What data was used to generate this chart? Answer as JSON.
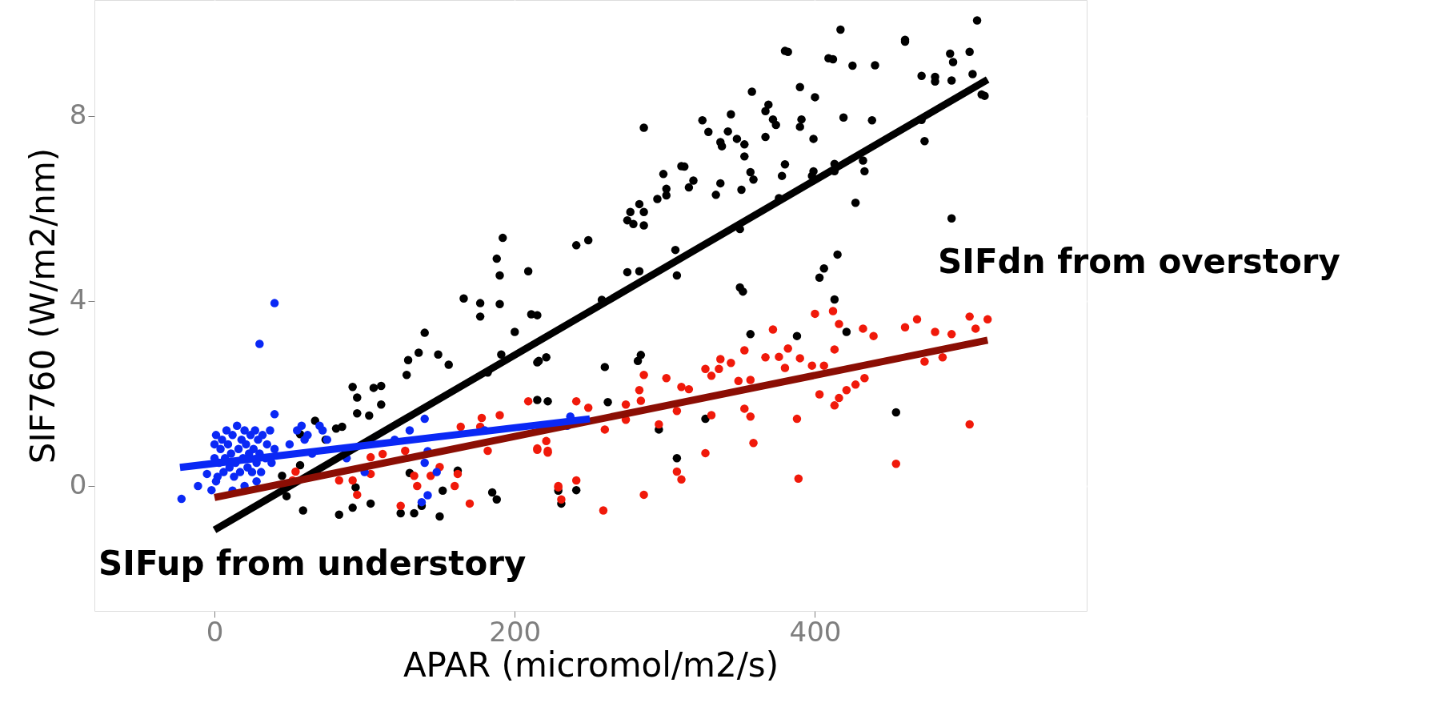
{
  "chart_data": {
    "type": "scatter",
    "xlabel": "APAR (micromol/m2/s)",
    "ylabel": "SIF760 (W/m2/nm)",
    "xlim": [
      -80,
      581
    ],
    "ylim": [
      -2.7,
      10.5
    ],
    "xticks": [
      0,
      200,
      400
    ],
    "yticks": [
      0,
      4,
      8
    ],
    "grid": true,
    "legend": false,
    "series": [
      {
        "marker": "circle",
        "color": "#000000",
        "x": [
          417,
          380,
          409,
          460,
          425,
          490,
          492,
          505,
          508,
          471,
          480,
          511,
          358,
          369,
          372,
          391,
          367,
          419,
          325,
          342,
          348,
          286,
          338,
          353,
          313,
          319,
          337,
          295,
          301,
          299,
          359,
          277,
          286,
          279,
          399,
          413,
          413,
          398,
          376,
          491,
          415,
          406,
          403,
          413,
          421,
          357,
          388,
          454,
          350,
          352,
          350,
          307,
          308,
          275,
          283,
          258,
          215,
          215,
          221,
          260,
          282,
          284,
          215,
          222,
          262,
          327,
          296,
          308,
          241,
          229,
          231,
          241,
          249,
          275,
          286,
          283,
          301,
          316,
          311,
          334,
          351,
          357,
          353,
          378,
          380,
          399,
          432,
          433,
          427,
          473,
          471,
          329,
          337,
          344,
          367,
          374,
          390,
          438,
          400,
          390,
          382,
          412,
          440,
          460,
          480,
          491,
          503,
          513,
          192,
          188,
          190,
          209,
          190,
          177,
          166,
          177,
          200,
          211,
          191,
          182,
          216,
          140,
          136,
          129,
          128,
          149,
          156,
          92,
          95,
          106,
          111,
          111,
          95,
          103,
          85,
          81,
          67,
          57,
          74,
          45,
          57,
          48,
          59,
          83,
          92,
          104,
          124,
          133,
          150,
          152,
          138,
          130,
          162,
          185,
          188,
          94
        ],
        "values": [
          9.86,
          9.4,
          9.24,
          9.6,
          9.08,
          9.34,
          9.16,
          8.9,
          10.06,
          8.86,
          8.74,
          8.46,
          8.52,
          8.24,
          7.92,
          7.92,
          7.54,
          7.96,
          7.9,
          7.66,
          7.5,
          7.74,
          7.34,
          7.38,
          6.9,
          6.6,
          6.54,
          6.2,
          6.42,
          6.74,
          6.62,
          5.92,
          5.92,
          5.66,
          7.5,
          6.96,
          6.8,
          6.7,
          6.22,
          5.78,
          5.0,
          4.7,
          4.5,
          4.03,
          3.33,
          3.28,
          3.24,
          1.59,
          4.29,
          4.2,
          5.55,
          5.1,
          4.55,
          4.62,
          4.64,
          4.02,
          3.69,
          2.67,
          2.78,
          2.57,
          2.7,
          2.83,
          1.86,
          1.83,
          1.81,
          1.45,
          1.22,
          0.6,
          -0.09,
          -0.1,
          -0.38,
          5.2,
          5.31,
          5.74,
          5.63,
          6.09,
          6.28,
          6.45,
          6.91,
          6.29,
          6.4,
          6.78,
          7.12,
          6.7,
          6.95,
          6.8,
          7.03,
          6.8,
          6.12,
          7.45,
          7.91,
          7.65,
          7.43,
          8.03,
          8.1,
          7.8,
          7.76,
          7.9,
          8.4,
          8.62,
          9.38,
          9.22,
          9.09,
          9.64,
          8.84,
          8.76,
          9.38,
          8.43,
          5.36,
          4.91,
          4.55,
          4.64,
          3.93,
          3.95,
          4.05,
          3.66,
          3.33,
          3.71,
          2.84,
          2.45,
          2.7,
          3.31,
          2.88,
          2.72,
          2.4,
          2.84,
          2.62,
          2.14,
          1.91,
          2.12,
          2.16,
          1.76,
          1.57,
          1.52,
          1.28,
          1.24,
          1.41,
          1.12,
          1.0,
          0.22,
          0.45,
          -0.22,
          -0.53,
          -0.62,
          -0.47,
          -0.38,
          -0.59,
          -0.59,
          -0.66,
          -0.1,
          -0.43,
          0.28,
          0.33,
          -0.14,
          -0.29,
          -0.03
        ]
      },
      {
        "marker": "circle",
        "name": "SIFdn from overstory",
        "color": "#f0190a",
        "x": [
          400,
          412,
          416,
          413,
          372,
          353,
          367,
          376,
          382,
          380,
          390,
          398,
          406,
          432,
          439,
          460,
          468,
          480,
          491,
          503,
          515,
          507,
          473,
          485,
          433,
          427,
          421,
          416,
          413,
          403,
          388,
          503,
          454,
          389,
          359,
          357,
          353,
          349,
          357,
          337,
          344,
          327,
          331,
          336,
          311,
          316,
          301,
          286,
          283,
          284,
          274,
          274,
          296,
          260,
          249,
          241,
          331,
          327,
          308,
          311,
          286,
          259,
          241,
          229,
          231,
          221,
          215,
          222,
          308,
          209,
          215,
          222,
          229,
          190,
          178,
          182,
          170,
          162,
          160,
          150,
          144,
          135,
          133,
          124,
          127,
          112,
          104,
          104,
          92,
          95,
          83,
          54,
          52,
          177,
          164
        ],
        "values": [
          3.72,
          3.78,
          3.5,
          2.95,
          3.38,
          2.93,
          2.78,
          2.79,
          2.97,
          2.55,
          2.76,
          2.6,
          2.6,
          3.4,
          3.24,
          3.43,
          3.6,
          3.33,
          3.28,
          3.66,
          3.6,
          3.4,
          2.69,
          2.78,
          2.33,
          2.19,
          2.07,
          1.9,
          1.74,
          1.98,
          1.45,
          1.33,
          0.48,
          0.16,
          0.93,
          1.5,
          1.67,
          2.27,
          2.29,
          2.74,
          2.66,
          2.53,
          2.38,
          2.53,
          2.14,
          2.09,
          2.33,
          2.4,
          2.07,
          1.84,
          1.76,
          1.43,
          1.33,
          1.22,
          1.69,
          1.83,
          1.53,
          0.71,
          0.31,
          0.14,
          -0.19,
          -0.53,
          0.12,
          -0.03,
          -0.29,
          0.97,
          0.78,
          0.72,
          1.62,
          1.83,
          0.81,
          0.76,
          0,
          1.53,
          1.47,
          0.76,
          -0.38,
          0.26,
          0,
          0.41,
          0.22,
          0,
          0.22,
          -0.43,
          0.76,
          0.69,
          0.62,
          0.26,
          0.12,
          -0.19,
          0.12,
          0.31,
          0.12,
          1.28,
          1.28
        ]
      },
      {
        "marker": "circle",
        "name": "SIFup from understory",
        "color": "#0a28f5",
        "x": [
          40,
          30,
          -22,
          -11,
          -5,
          -2,
          2,
          3,
          4,
          5,
          6,
          7,
          8,
          9,
          10,
          11,
          12,
          13,
          14,
          15,
          16,
          17,
          18,
          19,
          20,
          21,
          22,
          23,
          24,
          25,
          26,
          27,
          28,
          29,
          30,
          31,
          32,
          34,
          35,
          37,
          38,
          40,
          0,
          1,
          0,
          1,
          12,
          20,
          28,
          40,
          50,
          55,
          58,
          60,
          62,
          65,
          70,
          72,
          75,
          88,
          100,
          120,
          130,
          140,
          140,
          142,
          142,
          180,
          235,
          237,
          138,
          148
        ],
        "values": [
          3.95,
          3.07,
          -0.28,
          0,
          0.26,
          -0.09,
          0.2,
          0.5,
          0.8,
          1.0,
          0.3,
          0.6,
          1.2,
          0.9,
          0.4,
          0.7,
          1.1,
          0.2,
          0.5,
          1.3,
          0.8,
          0.3,
          1.0,
          0.6,
          1.2,
          0.9,
          0.4,
          0.7,
          1.1,
          0.3,
          0.8,
          1.2,
          0.5,
          1.0,
          0.7,
          0.3,
          1.1,
          0.6,
          0.9,
          1.2,
          0.5,
          0.8,
          0.9,
          1.1,
          0.6,
          0.1,
          -0.1,
          0.0,
          0.1,
          1.55,
          0.9,
          1.2,
          1.3,
          1.0,
          1.1,
          0.7,
          1.3,
          1.2,
          1.0,
          0.6,
          0.3,
          1.0,
          1.2,
          1.45,
          0.5,
          -0.2,
          0.75,
          1.2,
          1.3,
          1.5,
          -0.35,
          0.3
        ]
      },
      {
        "type": "line",
        "color": "#000000",
        "x": [
          0,
          515
        ],
        "values": [
          -0.95,
          8.78
        ]
      },
      {
        "type": "line",
        "color": "#8b0e04",
        "x": [
          0,
          515
        ],
        "values": [
          -0.25,
          3.15
        ]
      },
      {
        "type": "line",
        "color": "#0a28f5",
        "x": [
          -23,
          250
        ],
        "values": [
          0.4,
          1.45
        ]
      }
    ]
  }
}
